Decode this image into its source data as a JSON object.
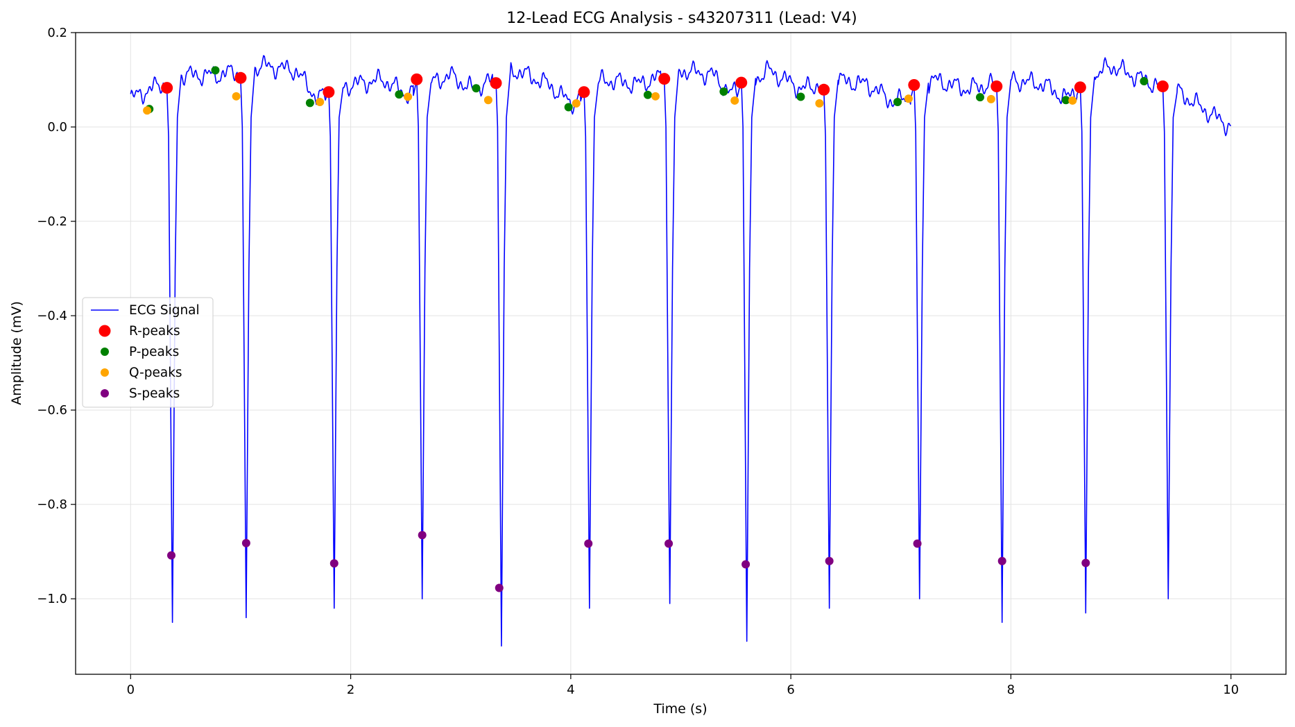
{
  "chart_data": {
    "type": "line",
    "title": "12-Lead ECG Analysis - s43207311 (Lead: V4)",
    "xlabel": "Time (s)",
    "ylabel": "Amplitude (mV)",
    "xlim": [
      -0.5,
      10.5
    ],
    "ylim": [
      -1.16,
      0.2
    ],
    "xticks": [
      0,
      2,
      4,
      6,
      8,
      10
    ],
    "xtick_labels": [
      "0",
      "2",
      "4",
      "6",
      "8",
      "10"
    ],
    "yticks": [
      0.2,
      0.0,
      -0.2,
      -0.4,
      -0.6,
      -0.8,
      -1.0
    ],
    "ytick_labels": [
      "0.2",
      "0.0",
      "−0.2",
      "−0.4",
      "−0.6",
      "−0.8",
      "−1.0"
    ],
    "grid": true,
    "legend_position": "center-left",
    "legend": [
      {
        "label": "ECG Signal",
        "kind": "line",
        "color": "#0000ff"
      },
      {
        "label": "R-peaks",
        "kind": "marker",
        "color": "#ff0000"
      },
      {
        "label": "P-peaks",
        "kind": "marker",
        "color": "#008000"
      },
      {
        "label": "Q-peaks",
        "kind": "marker",
        "color": "#ffa500"
      },
      {
        "label": "S-peaks",
        "kind": "marker",
        "color": "#800080"
      }
    ],
    "signal": {
      "name": "ECG Signal",
      "color": "#0000ff",
      "start": [
        0.0,
        0.06
      ],
      "end": [
        10.0,
        0.0
      ],
      "beats": [
        {
          "r": 0.33,
          "s": 0.38,
          "r_amp": 0.08,
          "s_amp": -1.05
        },
        {
          "r": 1.0,
          "s": 1.05,
          "r_amp": 0.1,
          "s_amp": -1.04
        },
        {
          "r": 1.8,
          "s": 1.85,
          "r_amp": 0.08,
          "s_amp": -1.02
        },
        {
          "r": 2.6,
          "s": 2.65,
          "r_amp": 0.1,
          "s_amp": -1.0
        },
        {
          "r": 3.32,
          "s": 3.37,
          "r_amp": 0.1,
          "s_amp": -1.1
        },
        {
          "r": 4.12,
          "s": 4.17,
          "r_amp": 0.08,
          "s_amp": -1.02
        },
        {
          "r": 4.85,
          "s": 4.9,
          "r_amp": 0.1,
          "s_amp": -1.01
        },
        {
          "r": 5.55,
          "s": 5.6,
          "r_amp": 0.1,
          "s_amp": -1.09
        },
        {
          "r": 6.3,
          "s": 6.35,
          "r_amp": 0.08,
          "s_amp": -1.02
        },
        {
          "r": 7.12,
          "s": 7.17,
          "r_amp": 0.09,
          "s_amp": -1.0
        },
        {
          "r": 7.87,
          "s": 7.92,
          "r_amp": 0.09,
          "s_amp": -1.05
        },
        {
          "r": 8.63,
          "s": 8.68,
          "r_amp": 0.09,
          "s_amp": -1.03
        },
        {
          "r": 9.38,
          "s": 9.43,
          "r_amp": 0.09,
          "s_amp": -1.0
        }
      ],
      "baseline": [
        [
          0.0,
          0.06
        ],
        [
          0.45,
          0.11
        ],
        [
          0.8,
          0.11
        ],
        [
          1.2,
          0.13
        ],
        [
          1.5,
          0.12
        ],
        [
          1.7,
          0.06
        ],
        [
          2.0,
          0.09
        ],
        [
          2.3,
          0.1
        ],
        [
          2.5,
          0.07
        ],
        [
          2.9,
          0.11
        ],
        [
          3.1,
          0.08
        ],
        [
          3.5,
          0.12
        ],
        [
          3.8,
          0.09
        ],
        [
          4.0,
          0.05
        ],
        [
          4.3,
          0.1
        ],
        [
          4.6,
          0.09
        ],
        [
          5.0,
          0.12
        ],
        [
          5.3,
          0.11
        ],
        [
          5.45,
          0.07
        ],
        [
          5.8,
          0.12
        ],
        [
          6.1,
          0.08
        ],
        [
          6.4,
          0.1
        ],
        [
          6.7,
          0.09
        ],
        [
          6.95,
          0.05
        ],
        [
          7.3,
          0.1
        ],
        [
          7.6,
          0.08
        ],
        [
          8.0,
          0.1
        ],
        [
          8.3,
          0.09
        ],
        [
          8.5,
          0.06
        ],
        [
          8.9,
          0.13
        ],
        [
          9.2,
          0.1
        ],
        [
          9.55,
          0.07
        ],
        [
          9.8,
          0.03
        ],
        [
          10.0,
          0.0
        ]
      ]
    },
    "series": [
      {
        "name": "R-peaks",
        "color": "#ff0000",
        "x": [
          0.33,
          1.0,
          1.8,
          2.6,
          3.32,
          4.12,
          4.85,
          5.55,
          6.3,
          7.12,
          7.87,
          8.63,
          9.38
        ],
        "y": [
          0.083,
          0.104,
          0.074,
          0.101,
          0.093,
          0.074,
          0.102,
          0.094,
          0.079,
          0.089,
          0.086,
          0.084,
          0.086
        ]
      },
      {
        "name": "P-peaks",
        "color": "#008000",
        "x": [
          0.17,
          0.77,
          1.63,
          2.44,
          3.14,
          3.98,
          4.7,
          5.39,
          6.09,
          6.97,
          7.72,
          8.5,
          9.21
        ],
        "y": [
          0.038,
          0.12,
          0.051,
          0.069,
          0.082,
          0.042,
          0.068,
          0.075,
          0.064,
          0.053,
          0.063,
          0.057,
          0.097
        ]
      },
      {
        "name": "Q-peaks",
        "color": "#ffa500",
        "x": [
          0.15,
          0.96,
          1.72,
          2.52,
          3.25,
          4.05,
          4.77,
          5.49,
          6.26,
          7.07,
          7.82,
          8.56
        ],
        "y": [
          0.035,
          0.065,
          0.053,
          0.064,
          0.057,
          0.05,
          0.065,
          0.056,
          0.05,
          0.06,
          0.059,
          0.056
        ]
      },
      {
        "name": "S-peaks",
        "color": "#800080",
        "x": [
          0.37,
          1.05,
          1.85,
          2.65,
          3.35,
          4.16,
          4.89,
          5.59,
          6.35,
          7.15,
          7.92,
          8.68
        ],
        "y": [
          -0.908,
          -0.882,
          -0.925,
          -0.865,
          -0.977,
          -0.883,
          -0.883,
          -0.927,
          -0.92,
          -0.883,
          -0.92,
          -0.924
        ]
      }
    ]
  }
}
